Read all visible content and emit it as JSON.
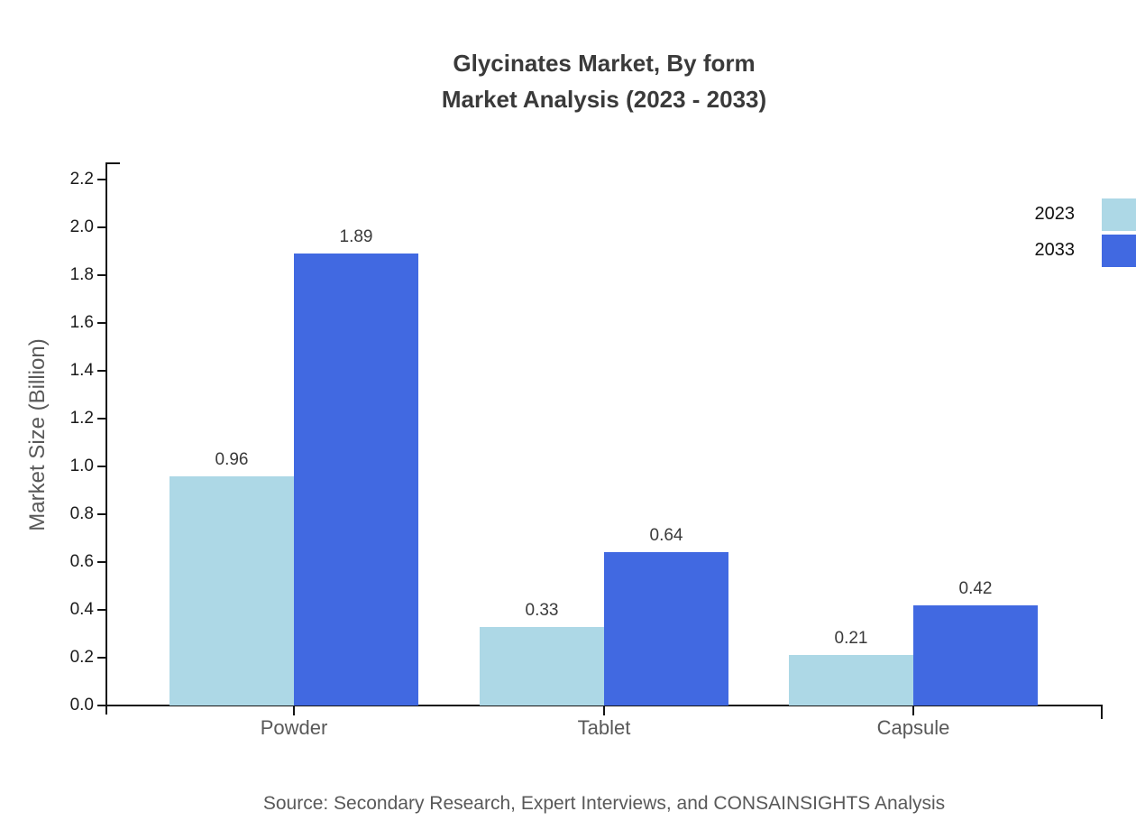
{
  "title": {
    "line1": "Glycinates Market, By form",
    "line2": "Market Analysis (2023 - 2033)"
  },
  "source": "Source: Secondary Research, Expert Interviews, and CONSAINSIGHTS Analysis",
  "chart_data": {
    "type": "bar",
    "title": "Glycinates Market, By form Market Analysis (2023 - 2033)",
    "categories": [
      "Powder",
      "Tablet",
      "Capsule"
    ],
    "series": [
      {
        "name": "2023",
        "color": "#ADD8E6",
        "values": [
          0.96,
          0.33,
          0.21
        ]
      },
      {
        "name": "2033",
        "color": "#4169E1",
        "values": [
          1.89,
          0.64,
          0.42
        ]
      }
    ],
    "value_labels": {
      "2023": [
        "0.96",
        "0.33",
        "0.21"
      ],
      "2033": [
        "1.89",
        "0.64",
        "0.42"
      ]
    },
    "xlabel": "",
    "ylabel": "Market Size (Billion)",
    "ylim": [
      0.0,
      2.2
    ],
    "ytick_step": 0.2,
    "ytick_labels": [
      "0.0",
      "0.2",
      "0.4",
      "0.6",
      "0.8",
      "1.0",
      "1.2",
      "1.4",
      "1.6",
      "1.8",
      "2.0",
      "2.2"
    ],
    "grid": false,
    "legend_position": "right-top"
  }
}
